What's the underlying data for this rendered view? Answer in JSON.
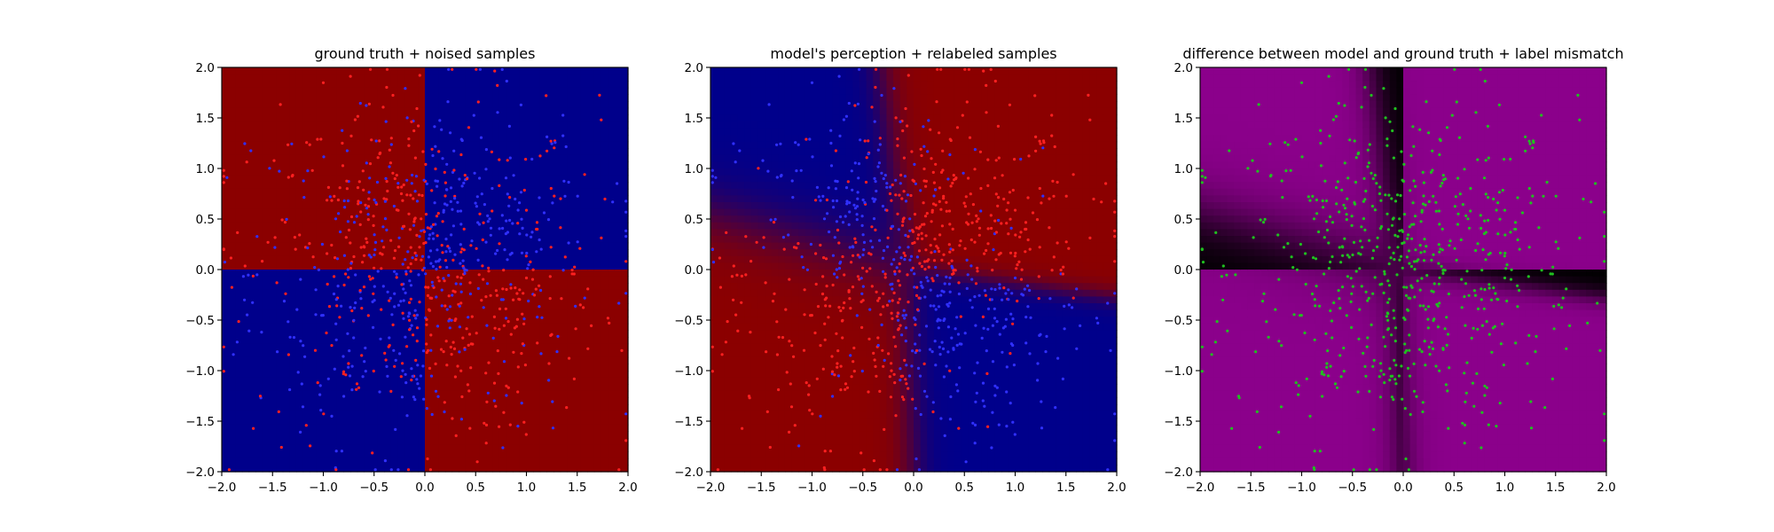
{
  "chart_data": [
    {
      "type": "heatmap",
      "title": "ground truth + noised samples",
      "xlim": [
        -2.0,
        2.0
      ],
      "ylim": [
        -2.0,
        2.0
      ],
      "xticks": [
        "−2.0",
        "−1.5",
        "−1.0",
        "−0.5",
        "0.0",
        "0.5",
        "1.0",
        "1.5",
        "2.0"
      ],
      "yticks": [
        "−2.0",
        "−1.5",
        "−1.0",
        "−0.5",
        "0.0",
        "0.5",
        "1.0",
        "1.5",
        "2.0"
      ],
      "background": "ground_truth",
      "point_mode": "noised",
      "colors": {
        "class_a": "#8b0000",
        "class_b": "#00008b",
        "point_a": "#ff2020",
        "point_b": "#3030ff"
      }
    },
    {
      "type": "heatmap",
      "title": "model's perception + relabeled samples",
      "xlim": [
        -2.0,
        2.0
      ],
      "ylim": [
        -2.0,
        2.0
      ],
      "xticks": [
        "−2.0",
        "−1.5",
        "−1.0",
        "−0.5",
        "0.0",
        "0.5",
        "1.0",
        "1.5",
        "2.0"
      ],
      "yticks": [
        "−2.0",
        "−1.5",
        "−1.0",
        "−0.5",
        "0.0",
        "0.5",
        "1.0",
        "1.5",
        "2.0"
      ],
      "background": "model",
      "point_mode": "relabeled",
      "colors": {
        "class_a": "#8b0000",
        "class_b": "#00008b",
        "point_a": "#ff2020",
        "point_b": "#3030ff"
      }
    },
    {
      "type": "heatmap",
      "title": "difference between model and ground truth + label mismatch",
      "xlim": [
        -2.0,
        2.0
      ],
      "ylim": [
        -2.0,
        2.0
      ],
      "xticks": [
        "−2.0",
        "−1.5",
        "−1.0",
        "−0.5",
        "0.0",
        "0.5",
        "1.0",
        "1.5",
        "2.0"
      ],
      "yticks": [
        "−2.0",
        "−1.5",
        "−1.0",
        "−0.5",
        "0.0",
        "0.5",
        "1.0",
        "1.5",
        "2.0"
      ],
      "background": "difference",
      "point_mode": "mismatch",
      "colors": {
        "diff": "#8b008b",
        "base": "#000000",
        "point": "#20c020"
      }
    }
  ]
}
